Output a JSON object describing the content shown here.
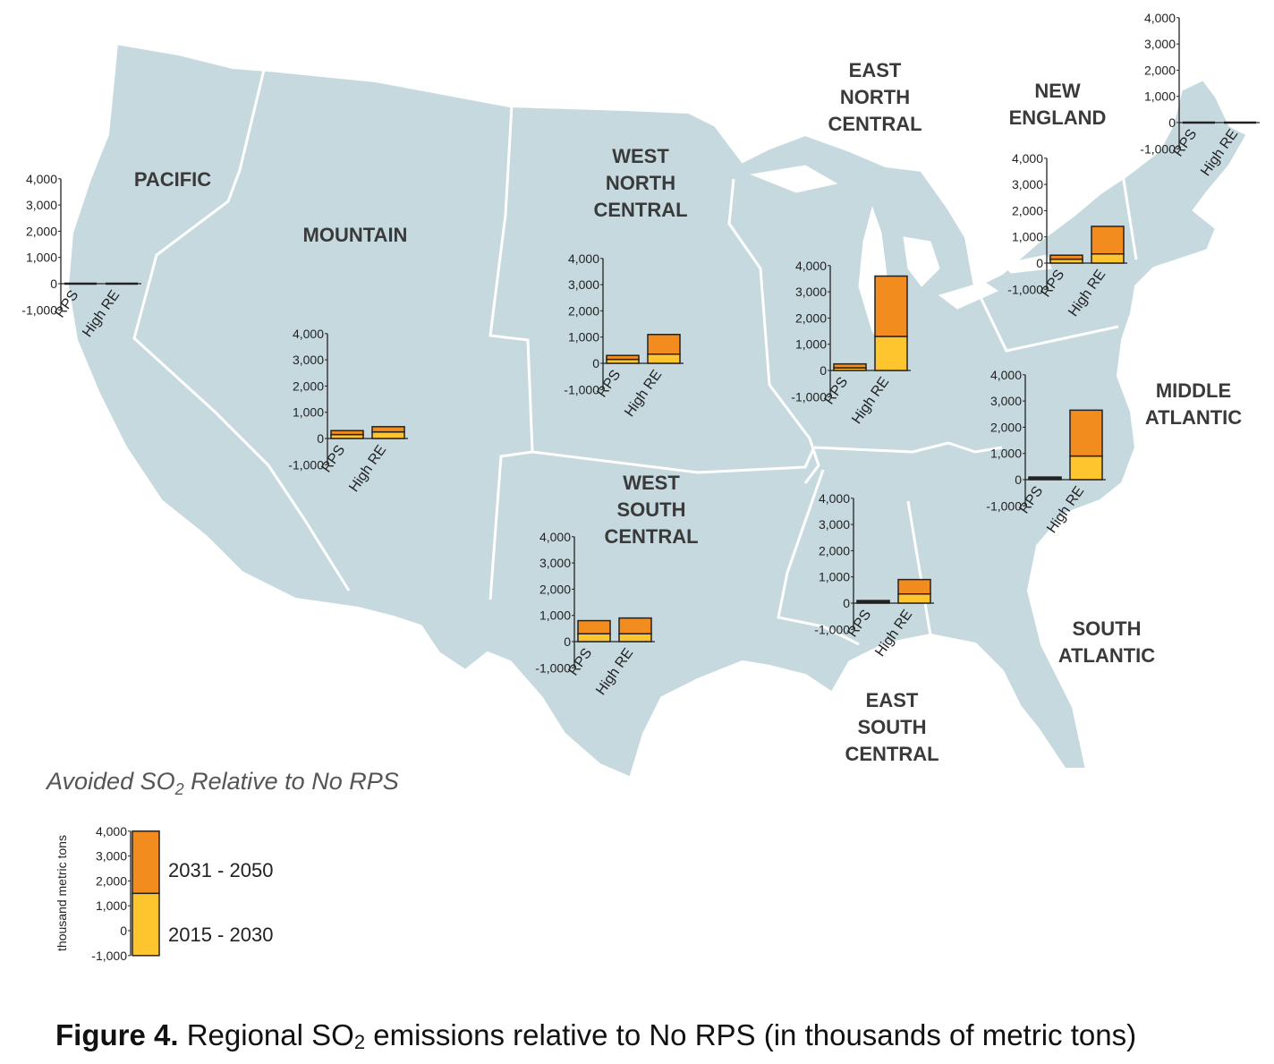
{
  "legend": {
    "title": "Avoided SO",
    "title_sub": "2",
    "title_rest": " Relative to No RPS",
    "ylabel": "thousand metric tons",
    "series": [
      {
        "name": "2031 - 2050",
        "color": "#f28c1e"
      },
      {
        "name": "2015 - 2030",
        "color": "#fec52e"
      }
    ]
  },
  "caption": {
    "bold": "Figure 4.",
    "text_before": " Regional SO",
    "sub": "2",
    "text_after": " emissions relative to No RPS (in thousands of metric tons)"
  },
  "region_labels": [
    {
      "id": "pacific",
      "lines": [
        "PACIFIC"
      ]
    },
    {
      "id": "mountain",
      "lines": [
        "MOUNTAIN"
      ]
    },
    {
      "id": "west-north-central",
      "lines": [
        "WEST",
        "NORTH",
        "CENTRAL"
      ]
    },
    {
      "id": "east-north-central",
      "lines": [
        "EAST",
        "NORTH",
        "CENTRAL"
      ]
    },
    {
      "id": "new-england",
      "lines": [
        "NEW",
        "ENGLAND"
      ]
    },
    {
      "id": "middle-atlantic",
      "lines": [
        "MIDDLE",
        "ATLANTIC"
      ]
    },
    {
      "id": "west-south-central",
      "lines": [
        "WEST",
        "SOUTH",
        "CENTRAL"
      ]
    },
    {
      "id": "east-south-central",
      "lines": [
        "EAST",
        "SOUTH",
        "CENTRAL"
      ]
    },
    {
      "id": "south-atlantic",
      "lines": [
        "SOUTH",
        "ATLANTIC"
      ]
    }
  ],
  "colors": {
    "land": "#c6d9df",
    "border": "#ffffff",
    "early": "#fec52e",
    "late": "#f28c1e",
    "label_text": "#3a3a3a"
  },
  "chart_data": {
    "type": "bar",
    "stacked": true,
    "ylim": [
      -1000,
      4000
    ],
    "yticks": [
      "4,000",
      "3,000",
      "2,000",
      "1,000",
      "0",
      "-1,000"
    ],
    "categories": [
      "RPS",
      "High RE"
    ],
    "series_names": [
      "2015 - 2030",
      "2031 - 2050"
    ],
    "regions": [
      {
        "region": "Pacific",
        "values": {
          "RPS": [
            0,
            0
          ],
          "High RE": [
            0,
            0
          ]
        }
      },
      {
        "region": "Mountain",
        "values": {
          "RPS": [
            150,
            150
          ],
          "High RE": [
            250,
            200
          ]
        }
      },
      {
        "region": "West North Central",
        "values": {
          "RPS": [
            150,
            150
          ],
          "High RE": [
            350,
            750
          ]
        }
      },
      {
        "region": "East North Central",
        "values": {
          "RPS": [
            100,
            150
          ],
          "High RE": [
            1300,
            2300
          ]
        }
      },
      {
        "region": "New England",
        "values": {
          "RPS": [
            0,
            0
          ],
          "High RE": [
            0,
            0
          ]
        }
      },
      {
        "region": "Middle Atlantic",
        "values": {
          "RPS": [
            150,
            150
          ],
          "High RE": [
            350,
            1050
          ]
        }
      },
      {
        "region": "South Atlantic",
        "values": {
          "RPS": [
            50,
            50
          ],
          "High RE": [
            900,
            1750
          ]
        }
      },
      {
        "region": "West South Central",
        "values": {
          "RPS": [
            300,
            500
          ],
          "High RE": [
            300,
            600
          ]
        }
      },
      {
        "region": "East South Central",
        "values": {
          "RPS": [
            50,
            50
          ],
          "High RE": [
            350,
            550
          ]
        }
      }
    ]
  }
}
